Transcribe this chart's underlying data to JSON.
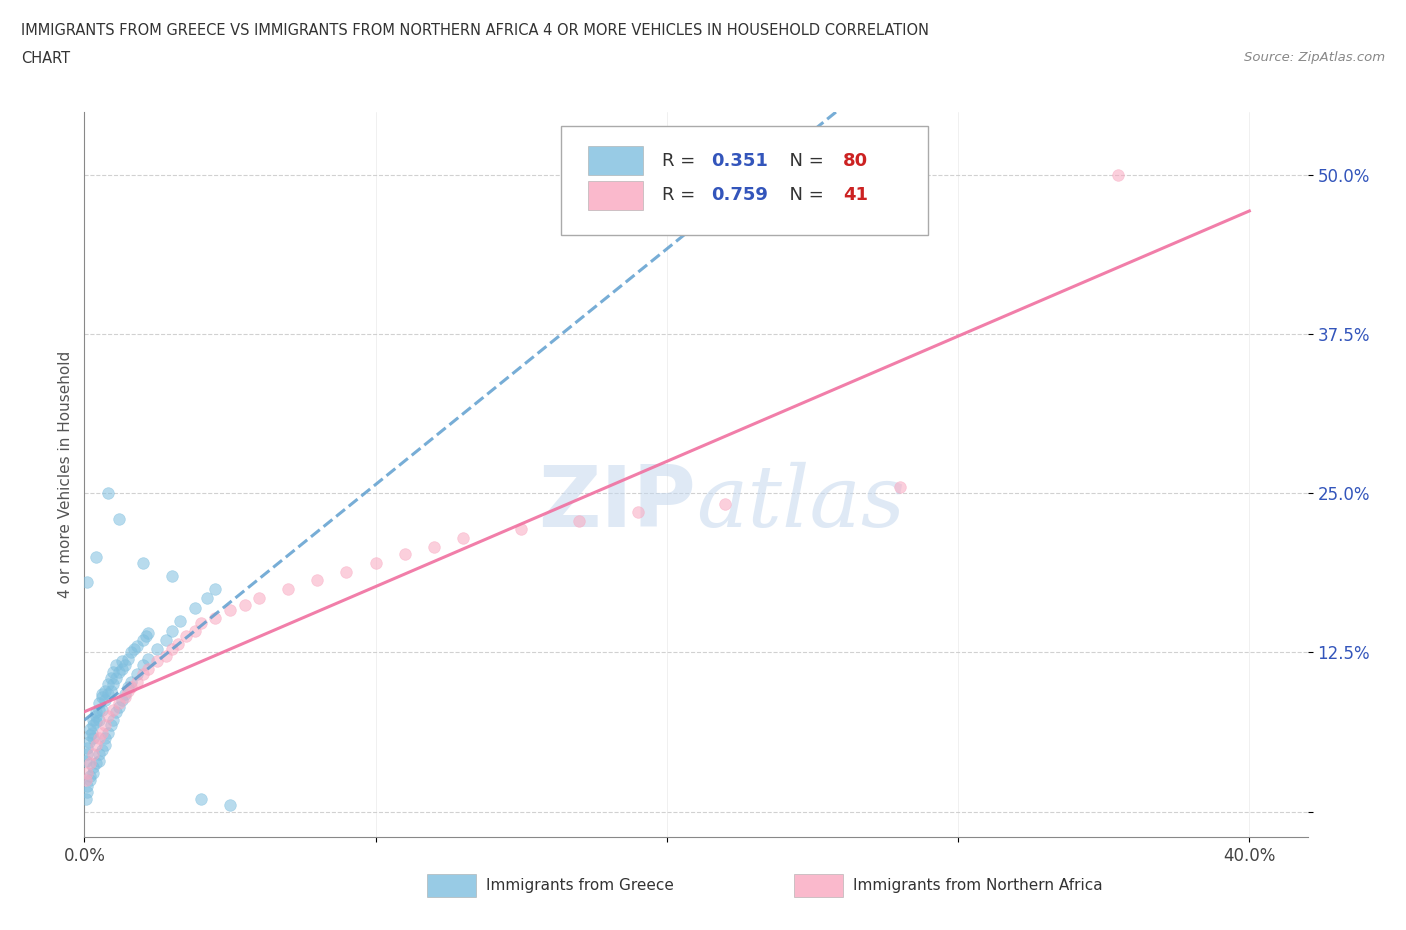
{
  "title_line1": "IMMIGRANTS FROM GREECE VS IMMIGRANTS FROM NORTHERN AFRICA 4 OR MORE VEHICLES IN HOUSEHOLD CORRELATION",
  "title_line2": "CHART",
  "source_text": "Source: ZipAtlas.com",
  "ylabel": "4 or more Vehicles in Household",
  "xlim": [
    0.0,
    0.42
  ],
  "ylim": [
    -0.02,
    0.55
  ],
  "xtick_positions": [
    0.0,
    0.1,
    0.2,
    0.3,
    0.4
  ],
  "xticklabels": [
    "0.0%",
    "",
    "",
    "",
    "40.0%"
  ],
  "ytick_positions": [
    0.0,
    0.125,
    0.25,
    0.375,
    0.5
  ],
  "yticklabels": [
    "",
    "12.5%",
    "25.0%",
    "37.5%",
    "50.0%"
  ],
  "watermark": "ZIPatlas",
  "greece_color": "#7fbfdf",
  "northern_africa_color": "#f9a8c0",
  "greece_line_color": "#5599cc",
  "northern_africa_line_color": "#f070a0",
  "greece_R": 0.351,
  "greece_N": 80,
  "northern_africa_R": 0.759,
  "northern_africa_N": 41,
  "legend_R_color": "#3355bb",
  "legend_N_color": "#cc2222",
  "grid_color": "#cccccc",
  "background_color": "#ffffff",
  "scatter_alpha": 0.55,
  "scatter_size": 70,
  "greece_x": [
    0.0005,
    0.001,
    0.001,
    0.0015,
    0.002,
    0.002,
    0.0025,
    0.003,
    0.003,
    0.003,
    0.004,
    0.004,
    0.004,
    0.005,
    0.005,
    0.005,
    0.006,
    0.006,
    0.006,
    0.007,
    0.007,
    0.008,
    0.008,
    0.009,
    0.009,
    0.01,
    0.01,
    0.011,
    0.011,
    0.012,
    0.013,
    0.013,
    0.014,
    0.015,
    0.016,
    0.017,
    0.018,
    0.02,
    0.021,
    0.022,
    0.0005,
    0.001,
    0.001,
    0.002,
    0.002,
    0.003,
    0.003,
    0.004,
    0.005,
    0.005,
    0.006,
    0.007,
    0.007,
    0.008,
    0.009,
    0.01,
    0.011,
    0.012,
    0.013,
    0.014,
    0.015,
    0.016,
    0.018,
    0.02,
    0.022,
    0.025,
    0.028,
    0.03,
    0.033,
    0.038,
    0.042,
    0.045,
    0.001,
    0.004,
    0.008,
    0.012,
    0.02,
    0.03,
    0.04,
    0.05
  ],
  "greece_y": [
    0.04,
    0.045,
    0.05,
    0.055,
    0.06,
    0.065,
    0.062,
    0.058,
    0.068,
    0.072,
    0.07,
    0.075,
    0.078,
    0.072,
    0.08,
    0.085,
    0.08,
    0.09,
    0.092,
    0.088,
    0.095,
    0.092,
    0.1,
    0.095,
    0.105,
    0.1,
    0.11,
    0.105,
    0.115,
    0.11,
    0.112,
    0.118,
    0.115,
    0.12,
    0.125,
    0.128,
    0.13,
    0.135,
    0.138,
    0.14,
    0.01,
    0.015,
    0.02,
    0.025,
    0.028,
    0.03,
    0.035,
    0.038,
    0.04,
    0.045,
    0.048,
    0.052,
    0.058,
    0.062,
    0.068,
    0.072,
    0.078,
    0.082,
    0.088,
    0.092,
    0.098,
    0.102,
    0.108,
    0.115,
    0.12,
    0.128,
    0.135,
    0.142,
    0.15,
    0.16,
    0.168,
    0.175,
    0.18,
    0.2,
    0.25,
    0.23,
    0.195,
    0.185,
    0.01,
    0.005
  ],
  "africa_x": [
    0.0005,
    0.001,
    0.002,
    0.003,
    0.004,
    0.005,
    0.006,
    0.007,
    0.008,
    0.01,
    0.012,
    0.014,
    0.015,
    0.016,
    0.018,
    0.02,
    0.022,
    0.025,
    0.028,
    0.03,
    0.032,
    0.035,
    0.038,
    0.04,
    0.045,
    0.05,
    0.055,
    0.06,
    0.07,
    0.08,
    0.09,
    0.1,
    0.11,
    0.12,
    0.13,
    0.15,
    0.17,
    0.19,
    0.22,
    0.28,
    0.355
  ],
  "africa_y": [
    0.025,
    0.03,
    0.038,
    0.045,
    0.052,
    0.058,
    0.062,
    0.068,
    0.075,
    0.08,
    0.085,
    0.09,
    0.095,
    0.098,
    0.102,
    0.108,
    0.112,
    0.118,
    0.122,
    0.128,
    0.132,
    0.138,
    0.142,
    0.148,
    0.152,
    0.158,
    0.162,
    0.168,
    0.175,
    0.182,
    0.188,
    0.195,
    0.202,
    0.208,
    0.215,
    0.222,
    0.228,
    0.235,
    0.242,
    0.255,
    0.5
  ]
}
